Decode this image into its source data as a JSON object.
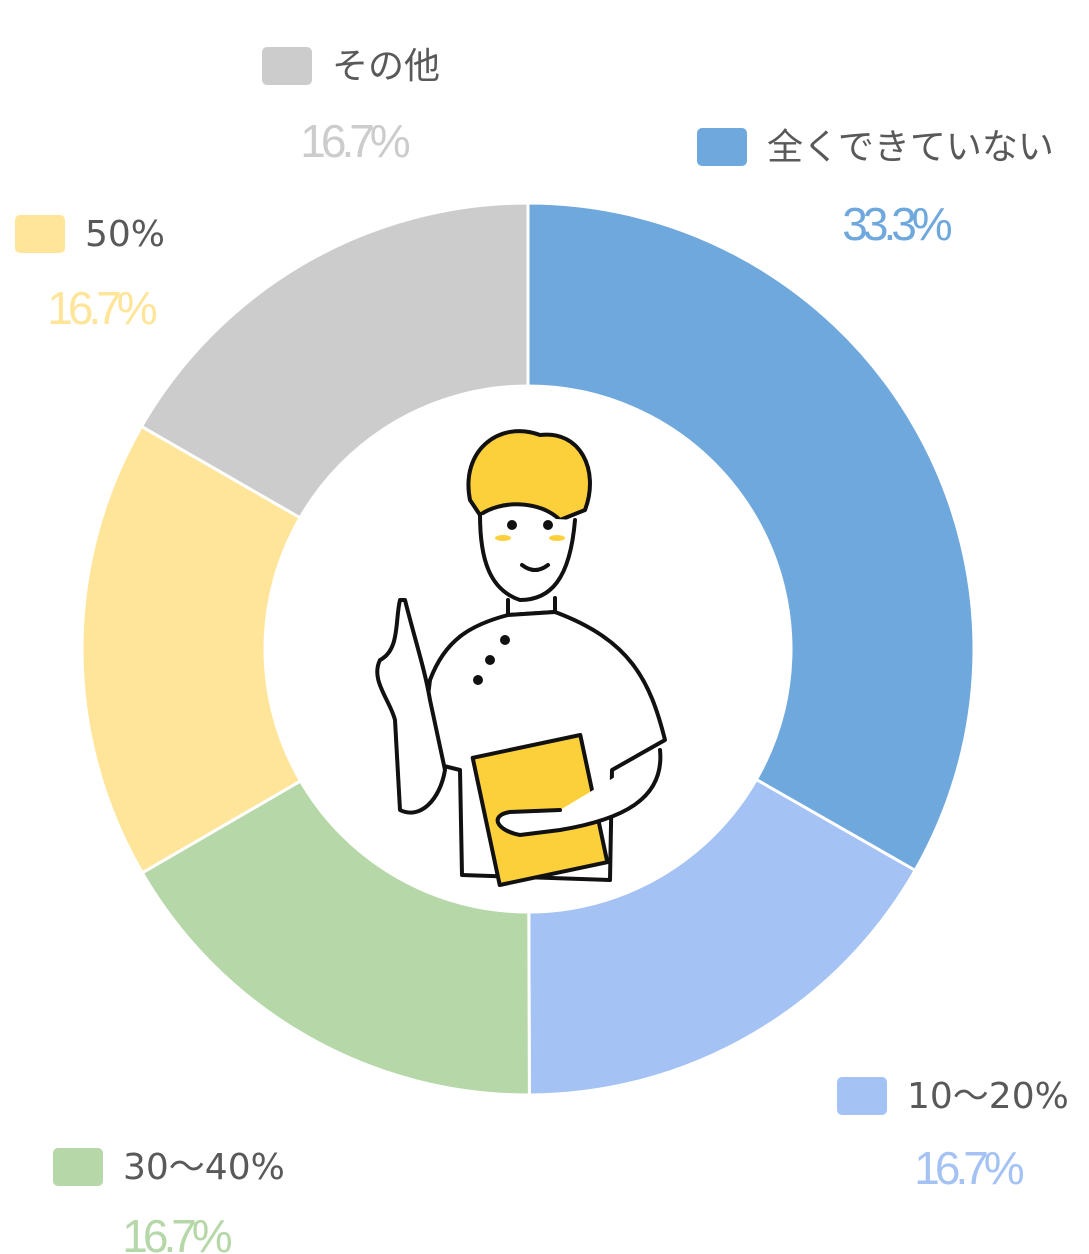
{
  "chart_data": {
    "type": "donut",
    "categories": [
      "全くできていない",
      "10〜20%",
      "30〜40%",
      "50%",
      "その他"
    ],
    "values": [
      33.3,
      16.7,
      16.7,
      16.7,
      16.7
    ],
    "value_labels": [
      "33.3%",
      "16.7%",
      "16.7%",
      "16.7%",
      "16.7%"
    ],
    "colors": [
      "#6fa8dc",
      "#a4c2f4",
      "#b6d7a8",
      "#ffe599",
      "#cccccc"
    ]
  }
}
